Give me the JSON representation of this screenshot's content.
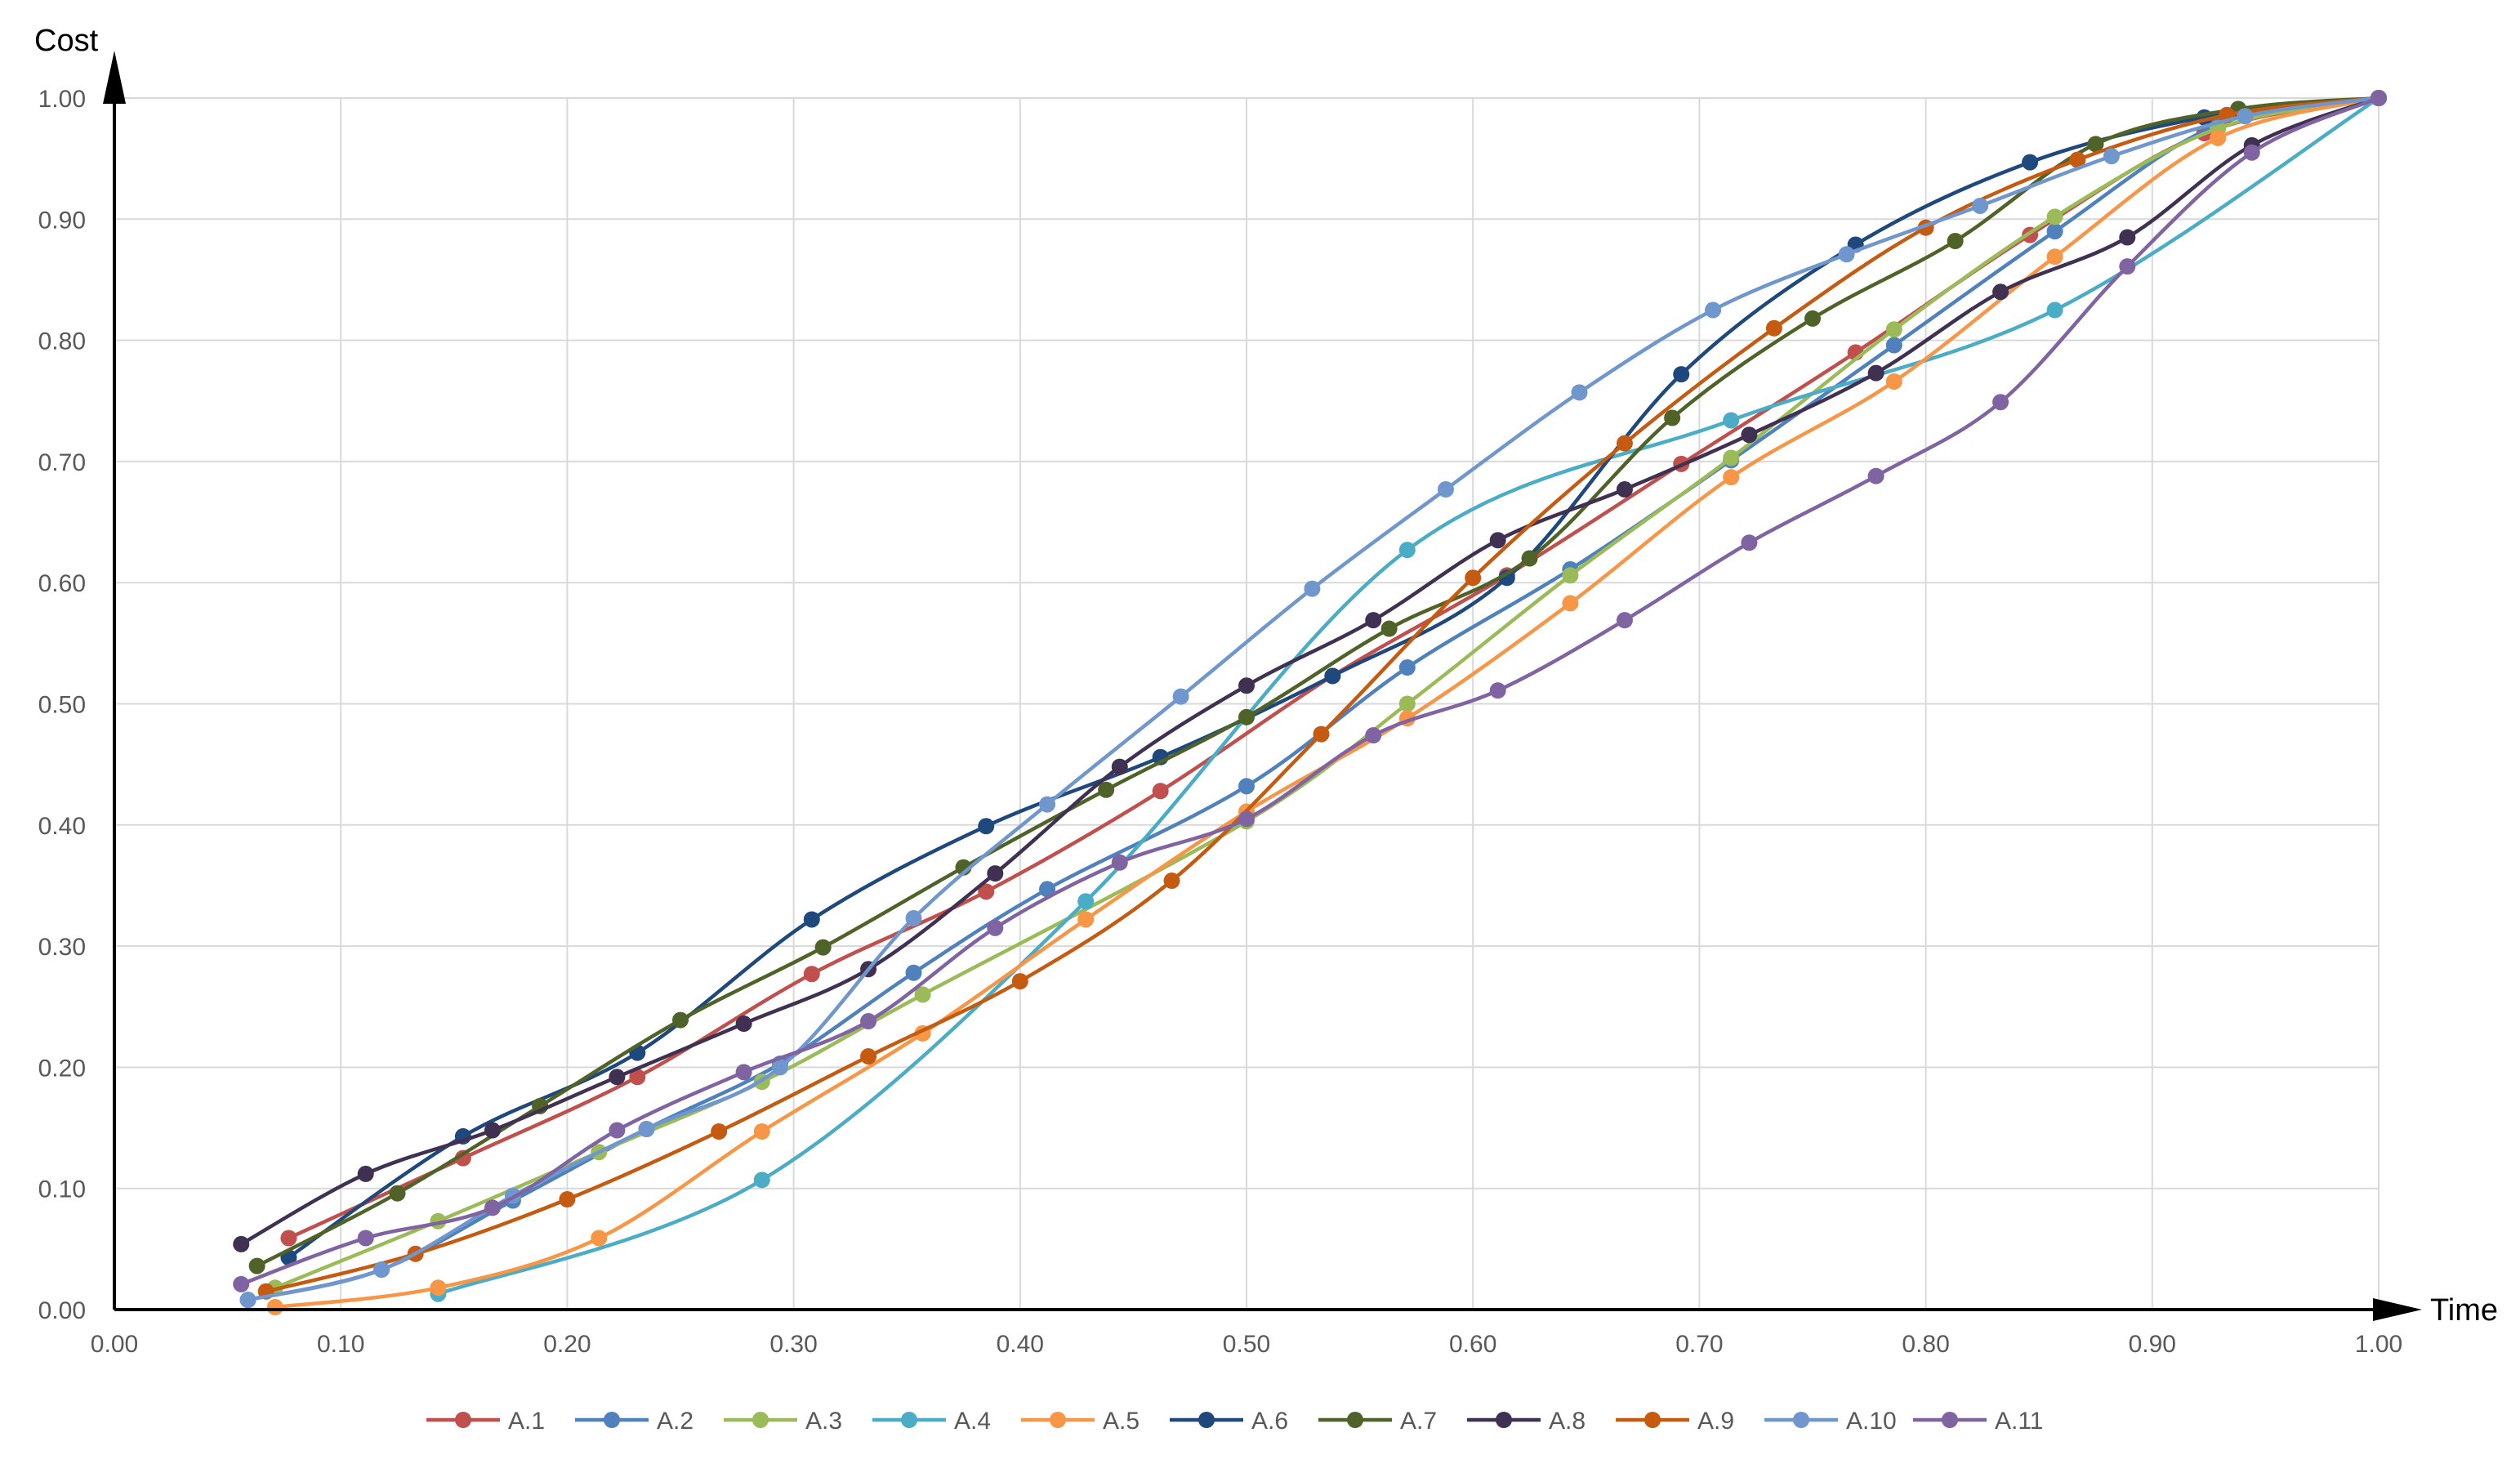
{
  "chart_data": {
    "type": "line",
    "xlabel": "Time",
    "ylabel": "Cost",
    "xlim": [
      0,
      1
    ],
    "ylim": [
      0,
      1
    ],
    "xticks": [
      "0.00",
      "0.10",
      "0.20",
      "0.30",
      "0.40",
      "0.50",
      "0.60",
      "0.70",
      "0.80",
      "0.90",
      "1.00"
    ],
    "yticks": [
      "0.00",
      "0.10",
      "0.20",
      "0.30",
      "0.40",
      "0.50",
      "0.60",
      "0.70",
      "0.80",
      "0.90",
      "1.00"
    ],
    "grid": true,
    "legend_position": "bottom",
    "series": [
      {
        "name": "A.1",
        "color": "#C0504D",
        "points": [
          [
            0.077,
            0.059
          ],
          [
            0.154,
            0.125
          ],
          [
            0.231,
            0.192
          ],
          [
            0.308,
            0.277
          ],
          [
            0.385,
            0.345
          ],
          [
            0.462,
            0.428
          ],
          [
            0.538,
            0.523
          ],
          [
            0.615,
            0.606
          ],
          [
            0.692,
            0.698
          ],
          [
            0.769,
            0.79
          ],
          [
            0.846,
            0.887
          ],
          [
            0.923,
            0.971
          ],
          [
            1.0,
            1.0
          ]
        ]
      },
      {
        "name": "A.2",
        "color": "#4F81BD",
        "points": [
          [
            0.059,
            0.008
          ],
          [
            0.118,
            0.033
          ],
          [
            0.176,
            0.09
          ],
          [
            0.235,
            0.149
          ],
          [
            0.294,
            0.203
          ],
          [
            0.353,
            0.278
          ],
          [
            0.412,
            0.347
          ],
          [
            0.5,
            0.432
          ],
          [
            0.571,
            0.53
          ],
          [
            0.643,
            0.611
          ],
          [
            0.714,
            0.701
          ],
          [
            0.786,
            0.796
          ],
          [
            0.857,
            0.89
          ],
          [
            0.929,
            0.978
          ],
          [
            1.0,
            1.0
          ]
        ]
      },
      {
        "name": "A.3",
        "color": "#9BBB59",
        "points": [
          [
            0.071,
            0.018
          ],
          [
            0.143,
            0.073
          ],
          [
            0.214,
            0.13
          ],
          [
            0.286,
            0.188
          ],
          [
            0.357,
            0.26
          ],
          [
            0.5,
            0.403
          ],
          [
            0.571,
            0.5
          ],
          [
            0.643,
            0.606
          ],
          [
            0.714,
            0.703
          ],
          [
            0.786,
            0.809
          ],
          [
            0.857,
            0.902
          ],
          [
            0.929,
            0.975
          ],
          [
            1.0,
            1.0
          ]
        ]
      },
      {
        "name": "A.4",
        "color": "#4BACC6",
        "points": [
          [
            0.143,
            0.013
          ],
          [
            0.286,
            0.107
          ],
          [
            0.429,
            0.337
          ],
          [
            0.571,
            0.627
          ],
          [
            0.714,
            0.734
          ],
          [
            0.857,
            0.825
          ],
          [
            1.0,
            1.0
          ]
        ]
      },
      {
        "name": "A.5",
        "color": "#F79646",
        "points": [
          [
            0.071,
            0.002
          ],
          [
            0.143,
            0.018
          ],
          [
            0.214,
            0.059
          ],
          [
            0.286,
            0.147
          ],
          [
            0.357,
            0.228
          ],
          [
            0.429,
            0.322
          ],
          [
            0.5,
            0.411
          ],
          [
            0.571,
            0.488
          ],
          [
            0.643,
            0.583
          ],
          [
            0.714,
            0.687
          ],
          [
            0.786,
            0.766
          ],
          [
            0.857,
            0.869
          ],
          [
            0.929,
            0.967
          ],
          [
            1.0,
            1.0
          ]
        ]
      },
      {
        "name": "A.6",
        "color": "#1F497D",
        "points": [
          [
            0.077,
            0.043
          ],
          [
            0.154,
            0.143
          ],
          [
            0.231,
            0.212
          ],
          [
            0.308,
            0.322
          ],
          [
            0.385,
            0.399
          ],
          [
            0.462,
            0.456
          ],
          [
            0.538,
            0.523
          ],
          [
            0.615,
            0.604
          ],
          [
            0.692,
            0.772
          ],
          [
            0.769,
            0.879
          ],
          [
            0.846,
            0.947
          ],
          [
            0.923,
            0.984
          ],
          [
            1.0,
            1.0
          ]
        ]
      },
      {
        "name": "A.7",
        "color": "#4F6228",
        "points": [
          [
            0.063,
            0.036
          ],
          [
            0.125,
            0.096
          ],
          [
            0.188,
            0.168
          ],
          [
            0.25,
            0.239
          ],
          [
            0.313,
            0.299
          ],
          [
            0.375,
            0.365
          ],
          [
            0.438,
            0.429
          ],
          [
            0.5,
            0.489
          ],
          [
            0.563,
            0.562
          ],
          [
            0.625,
            0.62
          ],
          [
            0.688,
            0.736
          ],
          [
            0.75,
            0.818
          ],
          [
            0.813,
            0.882
          ],
          [
            0.875,
            0.962
          ],
          [
            0.938,
            0.991
          ],
          [
            1.0,
            1.0
          ]
        ]
      },
      {
        "name": "A.8",
        "color": "#403152",
        "points": [
          [
            0.056,
            0.054
          ],
          [
            0.111,
            0.112
          ],
          [
            0.167,
            0.148
          ],
          [
            0.222,
            0.192
          ],
          [
            0.278,
            0.236
          ],
          [
            0.333,
            0.281
          ],
          [
            0.389,
            0.36
          ],
          [
            0.444,
            0.448
          ],
          [
            0.5,
            0.515
          ],
          [
            0.556,
            0.569
          ],
          [
            0.611,
            0.635
          ],
          [
            0.667,
            0.677
          ],
          [
            0.722,
            0.722
          ],
          [
            0.778,
            0.773
          ],
          [
            0.833,
            0.84
          ],
          [
            0.889,
            0.885
          ],
          [
            0.944,
            0.961
          ],
          [
            1.0,
            1.0
          ]
        ]
      },
      {
        "name": "A.9",
        "color": "#C55A11",
        "points": [
          [
            0.067,
            0.015
          ],
          [
            0.133,
            0.046
          ],
          [
            0.2,
            0.091
          ],
          [
            0.267,
            0.147
          ],
          [
            0.333,
            0.209
          ],
          [
            0.4,
            0.271
          ],
          [
            0.467,
            0.354
          ],
          [
            0.533,
            0.475
          ],
          [
            0.6,
            0.604
          ],
          [
            0.667,
            0.715
          ],
          [
            0.733,
            0.81
          ],
          [
            0.8,
            0.893
          ],
          [
            0.867,
            0.949
          ],
          [
            0.933,
            0.986
          ],
          [
            1.0,
            1.0
          ]
        ]
      },
      {
        "name": "A.10",
        "color": "#6F97CE",
        "points": [
          [
            0.059,
            0.008
          ],
          [
            0.118,
            0.033
          ],
          [
            0.176,
            0.094
          ],
          [
            0.235,
            0.149
          ],
          [
            0.294,
            0.2
          ],
          [
            0.353,
            0.323
          ],
          [
            0.412,
            0.417
          ],
          [
            0.471,
            0.506
          ],
          [
            0.529,
            0.595
          ],
          [
            0.588,
            0.677
          ],
          [
            0.647,
            0.757
          ],
          [
            0.706,
            0.825
          ],
          [
            0.765,
            0.871
          ],
          [
            0.824,
            0.911
          ],
          [
            0.882,
            0.952
          ],
          [
            0.941,
            0.985
          ],
          [
            1.0,
            1.0
          ]
        ]
      },
      {
        "name": "A.11",
        "color": "#8064A2",
        "points": [
          [
            0.056,
            0.021
          ],
          [
            0.111,
            0.059
          ],
          [
            0.167,
            0.084
          ],
          [
            0.222,
            0.148
          ],
          [
            0.278,
            0.196
          ],
          [
            0.333,
            0.238
          ],
          [
            0.389,
            0.315
          ],
          [
            0.444,
            0.369
          ],
          [
            0.5,
            0.405
          ],
          [
            0.556,
            0.474
          ],
          [
            0.611,
            0.511
          ],
          [
            0.667,
            0.569
          ],
          [
            0.722,
            0.633
          ],
          [
            0.778,
            0.688
          ],
          [
            0.833,
            0.749
          ],
          [
            0.889,
            0.861
          ],
          [
            0.944,
            0.955
          ],
          [
            1.0,
            1.0
          ]
        ]
      }
    ]
  }
}
